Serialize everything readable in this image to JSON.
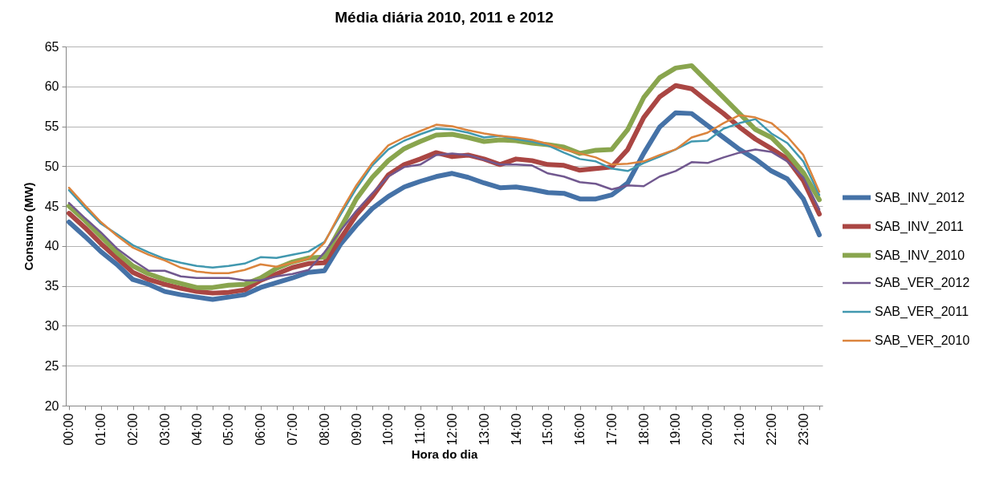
{
  "chart_data": {
    "type": "line",
    "title": "Média diária 2010, 2011 e 2012",
    "xlabel": "Hora do dia",
    "ylabel": "Consumo (MW)",
    "categories": [
      "00:00",
      null,
      "01:00",
      null,
      "02:00",
      null,
      "03:00",
      null,
      "04:00",
      null,
      "05:00",
      null,
      "06:00",
      null,
      "07:00",
      null,
      "08:00",
      null,
      "09:00",
      null,
      "10:00",
      null,
      "11:00",
      null,
      "12:00",
      null,
      "13:00",
      null,
      "14:00",
      null,
      "15:00",
      null,
      "16:00",
      null,
      "17:00",
      null,
      "18:00",
      null,
      "19:00",
      null,
      "20:00",
      null,
      "21:00",
      null,
      "22:00",
      null,
      "23:00",
      null
    ],
    "series": [
      {
        "name": "SAB_INV_2012",
        "color": "#4572a7",
        "values": [
          43.0,
          41.2,
          39.3,
          37.7,
          35.8,
          35.2,
          34.3,
          33.9,
          33.6,
          33.3,
          33.6,
          33.9,
          34.8,
          35.4,
          36.0,
          36.7,
          36.9,
          40.2,
          42.6,
          44.7,
          46.2,
          47.4,
          48.1,
          48.7,
          49.1,
          48.6,
          47.9,
          47.3,
          47.4,
          47.1,
          46.7,
          46.6,
          45.9,
          45.9,
          46.4,
          47.9,
          51.6,
          54.9,
          56.7,
          56.6,
          55.1,
          53.6,
          52.1,
          50.9,
          49.4,
          48.4,
          45.9,
          41.4
        ]
      },
      {
        "name": "SAB_INV_2011",
        "color": "#aa4643",
        "values": [
          44.1,
          42.3,
          40.3,
          38.5,
          36.7,
          35.8,
          35.2,
          34.7,
          34.3,
          34.1,
          34.2,
          34.5,
          35.7,
          36.5,
          37.3,
          37.8,
          37.9,
          40.9,
          43.9,
          46.2,
          48.9,
          50.2,
          50.9,
          51.7,
          51.2,
          51.4,
          50.9,
          50.2,
          50.9,
          50.7,
          50.2,
          50.1,
          49.5,
          49.7,
          49.9,
          52.1,
          56.1,
          58.7,
          60.1,
          59.7,
          58.1,
          56.6,
          54.9,
          53.4,
          52.2,
          50.9,
          48.2,
          44.0
        ]
      },
      {
        "name": "SAB_INV_2010",
        "color": "#89a54e",
        "values": [
          45.0,
          43.2,
          41.2,
          39.2,
          37.5,
          36.5,
          35.8,
          35.3,
          34.8,
          34.8,
          35.1,
          35.2,
          36.0,
          37.2,
          38.0,
          38.5,
          38.6,
          42.2,
          45.9,
          48.6,
          50.7,
          52.2,
          53.1,
          53.9,
          54.0,
          53.6,
          53.1,
          53.3,
          53.2,
          52.9,
          52.7,
          52.4,
          51.6,
          52.0,
          52.1,
          54.6,
          58.6,
          61.1,
          62.3,
          62.6,
          60.6,
          58.6,
          56.6,
          54.6,
          53.6,
          51.6,
          49.2,
          45.8
        ]
      },
      {
        "name": "SAB_VER_2012",
        "color": "#71588f",
        "values": [
          45.4,
          43.5,
          41.7,
          39.7,
          38.2,
          36.9,
          36.9,
          36.2,
          36.0,
          36.0,
          36.0,
          35.7,
          35.7,
          36.2,
          36.5,
          37.0,
          39.2,
          41.9,
          44.4,
          46.6,
          48.7,
          49.9,
          50.2,
          51.4,
          51.6,
          51.4,
          50.8,
          50.2,
          50.2,
          50.1,
          49.1,
          48.7,
          48.0,
          47.8,
          47.1,
          47.6,
          47.5,
          48.7,
          49.4,
          50.5,
          50.4,
          51.1,
          51.7,
          52.1,
          51.8,
          50.6,
          48.6,
          44.6
        ]
      },
      {
        "name": "SAB_VER_2011",
        "color": "#4198af",
        "values": [
          47.0,
          44.8,
          42.8,
          41.5,
          40.1,
          39.2,
          38.4,
          37.9,
          37.5,
          37.3,
          37.5,
          37.8,
          38.6,
          38.5,
          38.9,
          39.3,
          40.5,
          43.9,
          47.2,
          50.1,
          52.1,
          53.2,
          54.0,
          54.7,
          54.6,
          54.2,
          53.6,
          53.8,
          53.4,
          53.1,
          52.6,
          51.7,
          50.9,
          50.6,
          49.7,
          49.4,
          50.4,
          51.2,
          52.1,
          53.1,
          53.2,
          54.7,
          55.4,
          55.9,
          54.1,
          52.9,
          50.6,
          46.4
        ]
      },
      {
        "name": "SAB_VER_2010",
        "color": "#db843d",
        "values": [
          47.3,
          45.1,
          43.0,
          41.3,
          39.8,
          38.9,
          38.2,
          37.3,
          36.8,
          36.6,
          36.6,
          37.0,
          37.7,
          37.4,
          37.9,
          38.4,
          40.4,
          44.2,
          47.6,
          50.4,
          52.6,
          53.6,
          54.4,
          55.2,
          55.0,
          54.5,
          54.1,
          53.8,
          53.6,
          53.3,
          52.8,
          52.1,
          51.6,
          51.1,
          50.2,
          50.3,
          50.6,
          51.4,
          52.1,
          53.6,
          54.2,
          55.4,
          56.4,
          56.1,
          55.4,
          53.7,
          51.4,
          46.8
        ]
      }
    ],
    "ylim": [
      20,
      65
    ],
    "yticks": [
      20,
      25,
      30,
      35,
      40,
      45,
      50,
      55,
      60,
      65
    ],
    "grid": "y",
    "legend": "right"
  }
}
